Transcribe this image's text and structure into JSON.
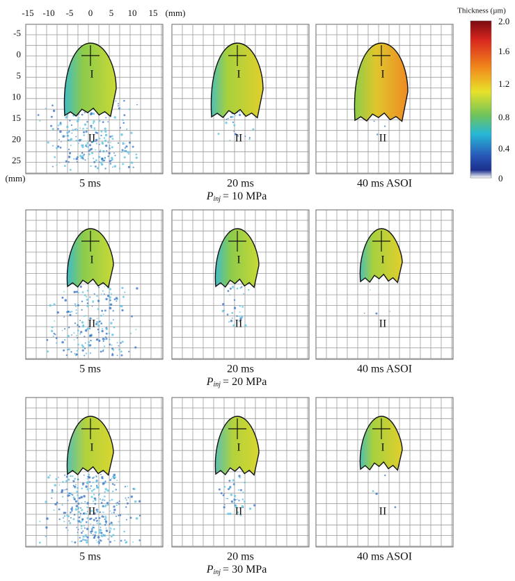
{
  "x_axis": {
    "ticks": [
      "-15",
      "-10",
      "-5",
      "0",
      "5",
      "10",
      "15"
    ],
    "unit": "(mm)"
  },
  "y_axis": {
    "ticks": [
      "-5",
      "0",
      "5",
      "10",
      "15",
      "20",
      "25"
    ],
    "unit": "(mm)"
  },
  "colorbar": {
    "title": "Thickness (µm)",
    "ticks": [
      "2.0",
      "1.6",
      "1.2",
      "0.8",
      "0.4",
      "0"
    ]
  },
  "rows": [
    {
      "pressure": {
        "symbol": "P",
        "subscript": "inj",
        "value": "= 10 MPa"
      },
      "panels": [
        {
          "time": "5 ms",
          "regions": [
            "I",
            "II"
          ]
        },
        {
          "time": "20 ms",
          "regions": [
            "I",
            "II"
          ]
        },
        {
          "time": "40 ms ASOI",
          "regions": [
            "I",
            "II"
          ]
        }
      ]
    },
    {
      "pressure": {
        "symbol": "P",
        "subscript": "inj",
        "value": "= 20 MPa"
      },
      "panels": [
        {
          "time": "5 ms",
          "regions": [
            "I",
            "II"
          ]
        },
        {
          "time": "20 ms",
          "regions": [
            "I",
            "II"
          ]
        },
        {
          "time": "40 ms ASOI",
          "regions": [
            "I",
            "II"
          ]
        }
      ]
    },
    {
      "pressure": {
        "symbol": "P",
        "subscript": "inj",
        "value": "= 30 MPa"
      },
      "panels": [
        {
          "time": "5 ms",
          "regions": [
            "I",
            "II"
          ]
        },
        {
          "time": "20 ms",
          "regions": [
            "I",
            "II"
          ]
        },
        {
          "time": "40 ms ASOI",
          "regions": [
            "I",
            "II"
          ]
        }
      ]
    }
  ]
}
